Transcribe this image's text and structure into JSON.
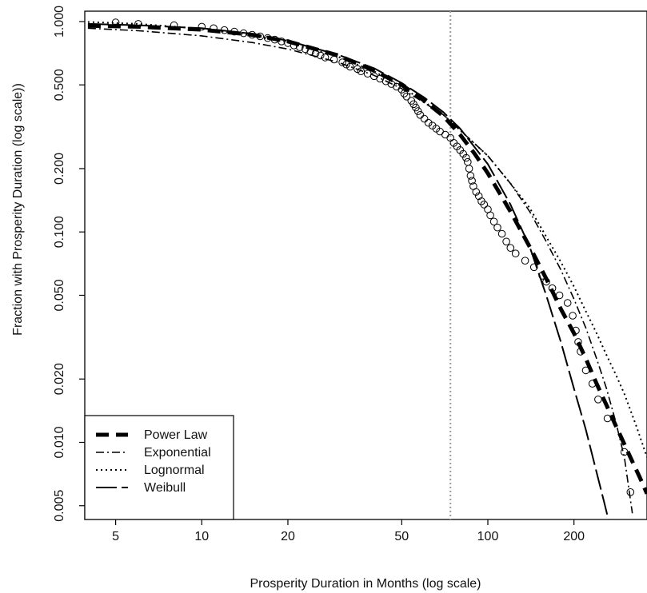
{
  "chart_data": {
    "type": "line",
    "title": "",
    "xlabel": "Prosperity Duration in Months (log scale)",
    "ylabel": "Fraction with Prosperity Duration (log scale))",
    "xscale": "log",
    "yscale": "log",
    "xlim": [
      3.9,
      360
    ],
    "ylim": [
      0.0043,
      1.12
    ],
    "x_ticks": [
      {
        "value": 5,
        "label": "5"
      },
      {
        "value": 10,
        "label": "10"
      },
      {
        "value": 20,
        "label": "20"
      },
      {
        "value": 50,
        "label": "50"
      },
      {
        "value": 100,
        "label": "100"
      },
      {
        "value": 200,
        "label": "200"
      }
    ],
    "y_ticks": [
      {
        "value": 0.005,
        "label": "0.005"
      },
      {
        "value": 0.01,
        "label": "0.010"
      },
      {
        "value": 0.02,
        "label": "0.020"
      },
      {
        "value": 0.05,
        "label": "0.050"
      },
      {
        "value": 0.1,
        "label": "0.100"
      },
      {
        "value": 0.2,
        "label": "0.200"
      },
      {
        "value": 0.5,
        "label": "0.500"
      },
      {
        "value": 1.0,
        "label": "1.000"
      }
    ],
    "reference_line": {
      "orientation": "vertical",
      "x": 74,
      "style": "dotted",
      "color": "#9a9a9a"
    },
    "legend": {
      "position": "bottom-left",
      "entries": [
        "Power Law",
        "Exponential",
        "Lognormal",
        "Weibull"
      ]
    },
    "scatter": {
      "marker": "open-circle",
      "points": [
        [
          5,
          0.99
        ],
        [
          6,
          0.975
        ],
        [
          8,
          0.96
        ],
        [
          10,
          0.945
        ],
        [
          11,
          0.93
        ],
        [
          12,
          0.91
        ],
        [
          13,
          0.895
        ],
        [
          14,
          0.88
        ],
        [
          15,
          0.865
        ],
        [
          16,
          0.85
        ],
        [
          17,
          0.835
        ],
        [
          18,
          0.82
        ],
        [
          19,
          0.805
        ],
        [
          20,
          0.79
        ],
        [
          21,
          0.77
        ],
        [
          22,
          0.755
        ],
        [
          23,
          0.74
        ],
        [
          24,
          0.72
        ],
        [
          25,
          0.705
        ],
        [
          26,
          0.69
        ],
        [
          27,
          0.675
        ],
        [
          29,
          0.66
        ],
        [
          31,
          0.64
        ],
        [
          32,
          0.625
        ],
        [
          33,
          0.61
        ],
        [
          35,
          0.595
        ],
        [
          36,
          0.58
        ],
        [
          38,
          0.565
        ],
        [
          40,
          0.55
        ],
        [
          42,
          0.535
        ],
        [
          44,
          0.52
        ],
        [
          46,
          0.505
        ],
        [
          48,
          0.49
        ],
        [
          50,
          0.475
        ],
        [
          51,
          0.455
        ],
        [
          52,
          0.44
        ],
        [
          54,
          0.42
        ],
        [
          55,
          0.405
        ],
        [
          56,
          0.39
        ],
        [
          57,
          0.375
        ],
        [
          58,
          0.36
        ],
        [
          60,
          0.345
        ],
        [
          62,
          0.33
        ],
        [
          64,
          0.32
        ],
        [
          66,
          0.31
        ],
        [
          68,
          0.3
        ],
        [
          71,
          0.29
        ],
        [
          74,
          0.28
        ],
        [
          76,
          0.265
        ],
        [
          78,
          0.255
        ],
        [
          80,
          0.245
        ],
        [
          82,
          0.235
        ],
        [
          84,
          0.225
        ],
        [
          85,
          0.215
        ],
        [
          86,
          0.2
        ],
        [
          87,
          0.185
        ],
        [
          88,
          0.175
        ],
        [
          89,
          0.165
        ],
        [
          91,
          0.155
        ],
        [
          93,
          0.148
        ],
        [
          95,
          0.14
        ],
        [
          97,
          0.135
        ],
        [
          100,
          0.128
        ],
        [
          102,
          0.12
        ],
        [
          105,
          0.112
        ],
        [
          108,
          0.105
        ],
        [
          112,
          0.098
        ],
        [
          116,
          0.09
        ],
        [
          120,
          0.084
        ],
        [
          125,
          0.079
        ],
        [
          135,
          0.073
        ],
        [
          145,
          0.068
        ],
        [
          155,
          0.062
        ],
        [
          160,
          0.058
        ],
        [
          168,
          0.054
        ],
        [
          178,
          0.05
        ],
        [
          190,
          0.046
        ],
        [
          198,
          0.04
        ],
        [
          203,
          0.034
        ],
        [
          207,
          0.03
        ],
        [
          211,
          0.027
        ],
        [
          220,
          0.022
        ],
        [
          232,
          0.019
        ],
        [
          243,
          0.016
        ],
        [
          262,
          0.013
        ],
        [
          300,
          0.009
        ],
        [
          315,
          0.0058
        ]
      ]
    },
    "series": [
      {
        "name": "Power Law",
        "style": "thick-dashed",
        "x": [
          4,
          6,
          10,
          15,
          20,
          30,
          40,
          50,
          60,
          70,
          80,
          90,
          100,
          120,
          140,
          160,
          180,
          200,
          220,
          240,
          260,
          280,
          300,
          320,
          340,
          360
        ],
        "y": [
          0.955,
          0.945,
          0.915,
          0.865,
          0.805,
          0.69,
          0.585,
          0.5,
          0.42,
          0.355,
          0.29,
          0.235,
          0.19,
          0.125,
          0.085,
          0.06,
          0.043,
          0.033,
          0.025,
          0.019,
          0.015,
          0.012,
          0.0098,
          0.0081,
          0.0068,
          0.0057
        ]
      },
      {
        "name": "Exponential",
        "style": "dot-dash",
        "x": [
          4,
          6,
          10,
          15,
          20,
          30,
          40,
          50,
          70,
          100,
          120,
          140,
          160,
          180,
          200,
          220,
          240,
          260,
          280,
          300,
          320
        ],
        "y": [
          0.93,
          0.905,
          0.855,
          0.795,
          0.74,
          0.64,
          0.555,
          0.48,
          0.36,
          0.23,
          0.17,
          0.125,
          0.09,
          0.066,
          0.048,
          0.035,
          0.025,
          0.018,
          0.0125,
          0.0085,
          0.0046
        ]
      },
      {
        "name": "Lognormal",
        "style": "dotted",
        "x": [
          4,
          6,
          10,
          15,
          20,
          30,
          40,
          50,
          70,
          100,
          120,
          140,
          160,
          180,
          200,
          220,
          240,
          260,
          280,
          300,
          330,
          360
        ],
        "y": [
          0.995,
          0.975,
          0.925,
          0.86,
          0.795,
          0.68,
          0.58,
          0.49,
          0.36,
          0.23,
          0.17,
          0.13,
          0.095,
          0.072,
          0.055,
          0.042,
          0.033,
          0.026,
          0.021,
          0.017,
          0.012,
          0.0085
        ]
      },
      {
        "name": "Weibull",
        "style": "long-dash",
        "x": [
          4,
          6,
          10,
          15,
          20,
          30,
          40,
          50,
          60,
          70,
          80,
          100,
          120,
          140,
          160,
          180,
          200,
          220,
          240,
          255,
          265
        ],
        "y": [
          0.975,
          0.96,
          0.93,
          0.875,
          0.81,
          0.695,
          0.6,
          0.51,
          0.435,
          0.37,
          0.31,
          0.21,
          0.135,
          0.085,
          0.05,
          0.03,
          0.018,
          0.0115,
          0.0072,
          0.0052,
          0.0042
        ]
      }
    ],
    "grid": false
  }
}
